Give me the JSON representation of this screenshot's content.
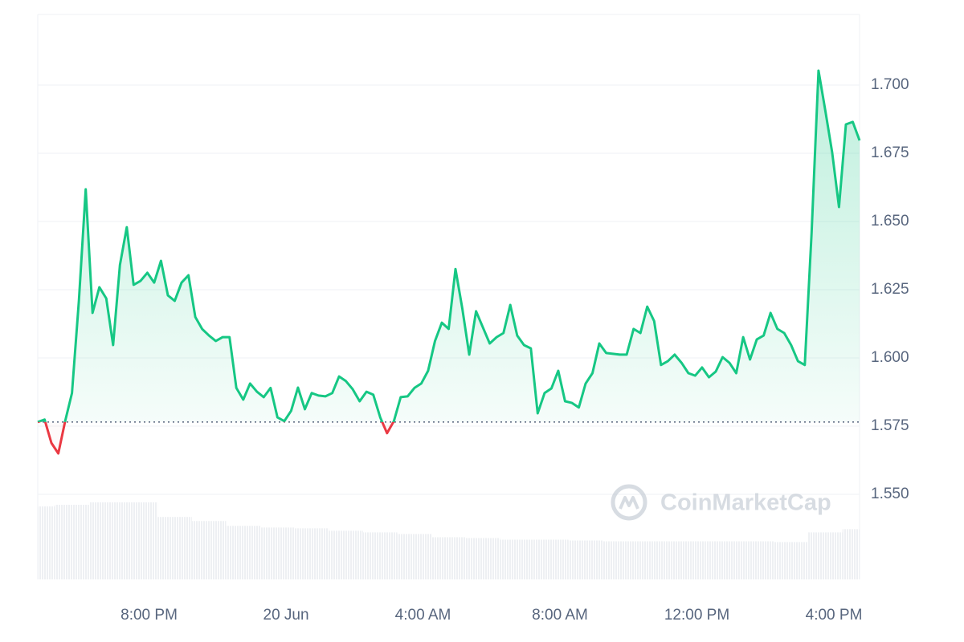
{
  "chart_data": {
    "type": "line",
    "watermark": "CoinMarketCap",
    "xlim": [
      0,
      24
    ],
    "xticks": [
      {
        "value": 3.25,
        "label": "8:00 PM"
      },
      {
        "value": 7.25,
        "label": "20 Jun"
      },
      {
        "value": 11.25,
        "label": "4:00 AM"
      },
      {
        "value": 15.25,
        "label": "8:00 AM"
      },
      {
        "value": 19.25,
        "label": "12:00 PM"
      },
      {
        "value": 23.25,
        "label": "4:00 PM"
      }
    ],
    "ylim": [
      1.5188,
      1.7259
    ],
    "yticks": [
      {
        "value": 1.55,
        "label": "1.550"
      },
      {
        "value": 1.575,
        "label": "1.575"
      },
      {
        "value": 1.6,
        "label": "1.600"
      },
      {
        "value": 1.625,
        "label": "1.625"
      },
      {
        "value": 1.65,
        "label": "1.650"
      },
      {
        "value": 1.675,
        "label": "1.675"
      },
      {
        "value": 1.7,
        "label": "1.700"
      }
    ],
    "grid": true,
    "up_color": "#16c784",
    "down_color": "#ea3943",
    "series": [
      {
        "x": [
          0,
          0.2,
          0.4,
          0.6,
          0.8,
          1,
          1.2,
          1.4,
          1.6,
          1.8,
          2,
          2.2,
          2.4,
          2.6,
          2.8,
          3,
          3.2,
          3.4,
          3.6,
          3.8,
          4,
          4.2,
          4.4,
          4.6,
          4.8,
          5,
          5.2,
          5.4,
          5.6,
          5.8,
          6,
          6.2,
          6.4,
          6.6,
          6.8,
          7,
          7.2,
          7.4,
          7.6,
          7.8,
          8,
          8.2,
          8.4,
          8.6,
          8.8,
          9,
          9.2,
          9.4,
          9.6,
          9.8,
          10,
          10.2,
          10.4,
          10.6,
          10.8,
          11,
          11.2,
          11.4,
          11.6,
          11.8,
          12,
          12.2,
          12.4,
          12.6,
          12.8,
          13,
          13.2,
          13.4,
          13.6,
          13.8,
          14,
          14.2,
          14.4,
          14.6,
          14.8,
          15,
          15.2,
          15.4,
          15.6,
          15.8,
          16,
          16.2,
          16.4,
          16.6,
          16.8,
          17,
          17.2,
          17.4,
          17.6,
          17.8,
          18,
          18.2,
          18.4,
          18.6,
          18.8,
          19,
          19.2,
          19.4,
          19.6,
          19.8,
          20,
          20.2,
          20.4,
          20.6,
          20.8,
          21,
          21.2,
          21.4,
          21.6,
          21.8,
          22,
          22.2,
          22.4,
          22.6,
          22.8,
          23,
          23.2,
          23.4,
          23.6,
          23.8,
          24
        ],
        "values": [
          1.5765,
          1.5774,
          1.5688,
          1.565,
          1.5768,
          1.5871,
          1.6209,
          1.6618,
          1.6165,
          1.6259,
          1.6218,
          1.6047,
          1.6341,
          1.6479,
          1.6268,
          1.6282,
          1.6312,
          1.6276,
          1.6356,
          1.6229,
          1.6209,
          1.6276,
          1.6303,
          1.615,
          1.6106,
          1.6082,
          1.6062,
          1.6076,
          1.6076,
          1.589,
          1.5847,
          1.5906,
          1.5876,
          1.5856,
          1.589,
          1.5782,
          1.5768,
          1.5806,
          1.5891,
          1.5812,
          1.5871,
          1.5862,
          1.5859,
          1.5871,
          1.5932,
          1.5915,
          1.5885,
          1.5841,
          1.5876,
          1.5865,
          1.5782,
          1.5724,
          1.5768,
          1.5856,
          1.5859,
          1.589,
          1.5906,
          1.5953,
          1.6062,
          1.6129,
          1.6106,
          1.6326,
          1.6179,
          1.6012,
          1.6171,
          1.6112,
          1.6053,
          1.6076,
          1.6091,
          1.6194,
          1.6082,
          1.6047,
          1.6035,
          1.5797,
          1.5871,
          1.5888,
          1.5953,
          1.5841,
          1.5835,
          1.5818,
          1.5906,
          1.5944,
          1.6053,
          1.6018,
          1.6015,
          1.6012,
          1.6012,
          1.6106,
          1.6091,
          1.6188,
          1.6135,
          1.5974,
          1.5988,
          1.6012,
          1.5982,
          1.5944,
          1.5935,
          1.5965,
          1.5929,
          1.595,
          1.6003,
          1.5982,
          1.5944,
          1.6076,
          1.5994,
          1.6068,
          1.6082,
          1.6165,
          1.6106,
          1.6091,
          1.6047,
          1.5988,
          1.5974,
          1.6459,
          1.7053,
          1.6906,
          1.6753,
          1.6553,
          1.6856,
          1.6865,
          1.6797
        ]
      }
    ],
    "volume_x": [
      0,
      1,
      2,
      3,
      4,
      5,
      6,
      7,
      8,
      9,
      10,
      11,
      12,
      13,
      14,
      15,
      16,
      17,
      18,
      19,
      20,
      21,
      22,
      23,
      24
    ],
    "volume": [
      90,
      92,
      95,
      95,
      77,
      72,
      66,
      64,
      63,
      60,
      58,
      56,
      52,
      51,
      49,
      49,
      48,
      47,
      47,
      47,
      47,
      47,
      46,
      58,
      62
    ]
  }
}
